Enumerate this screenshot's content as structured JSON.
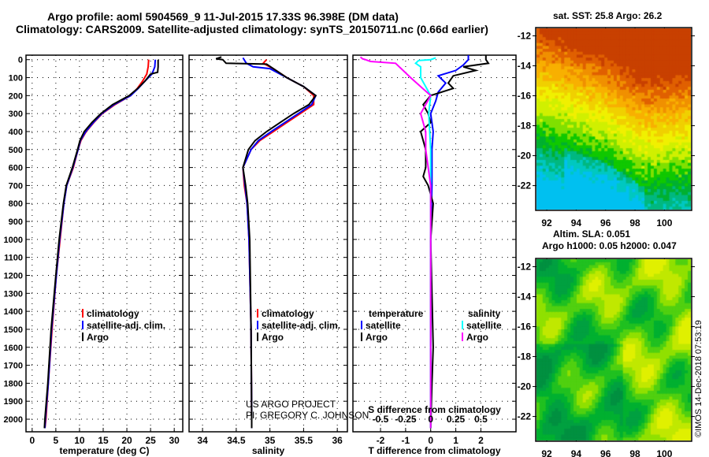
{
  "title_line1": "Argo profile: aoml 5904569_9 11-Jul-2015 17.33S 96.398E (DM data)",
  "title_line2": "Climatology: CARS2009. Satellite-adjusted climatology: synTS_20150711.nc (0.66d earlier)",
  "credit": "©IMOS 14-Dec-2018 07:53:19",
  "project_note": {
    "line1": "US ARGO PROJECT",
    "line2": "PI: GREGORY C. JOHNSON"
  },
  "colors": {
    "climatology": "#ff0000",
    "satellite": "#0000ff",
    "argo": "#000000",
    "sal_satellite": "#00ffff",
    "sal_argo": "#ff00ff"
  },
  "chart_data": [
    {
      "type": "line",
      "id": "temperature",
      "xlabel": "temperature (deg C)",
      "ylabel": "pressure",
      "xticks": [
        0,
        5,
        10,
        15,
        20,
        25,
        30
      ],
      "yticks": [
        0,
        100,
        200,
        300,
        400,
        500,
        600,
        700,
        800,
        900,
        1000,
        1100,
        1200,
        1300,
        1400,
        1500,
        1600,
        1700,
        1800,
        1900,
        2000
      ],
      "xlim": [
        -1.3,
        31.8
      ],
      "ylim": [
        2070,
        -25
      ],
      "legend": [
        "climatology",
        "satellite-adj. clim.",
        "Argo"
      ],
      "series": [
        {
          "name": "climatology",
          "color": "#ff0000",
          "points": [
            [
              0,
              24.6
            ],
            [
              40,
              24.5
            ],
            [
              80,
              24.2
            ],
            [
              120,
              23.3
            ],
            [
              160,
              22.2
            ],
            [
              200,
              20.8
            ],
            [
              250,
              17.5
            ],
            [
              300,
              14.8
            ],
            [
              350,
              13.0
            ],
            [
              400,
              11.4
            ],
            [
              450,
              10.3
            ],
            [
              500,
              9.7
            ],
            [
              600,
              8.7
            ],
            [
              700,
              7.3
            ],
            [
              800,
              6.7
            ],
            [
              1000,
              5.9
            ],
            [
              1200,
              5.1
            ],
            [
              1500,
              4.2
            ],
            [
              1800,
              3.4
            ],
            [
              2000,
              2.9
            ],
            [
              2050,
              2.7
            ]
          ]
        },
        {
          "name": "satellite-adj. clim.",
          "color": "#0000ff",
          "points": [
            [
              0,
              26.0
            ],
            [
              40,
              25.9
            ],
            [
              80,
              25.3
            ],
            [
              120,
              23.8
            ],
            [
              160,
              22.4
            ],
            [
              200,
              20.8
            ],
            [
              250,
              17.3
            ],
            [
              300,
              14.7
            ],
            [
              350,
              12.9
            ],
            [
              400,
              11.3
            ],
            [
              450,
              10.2
            ],
            [
              500,
              9.7
            ],
            [
              600,
              8.6
            ],
            [
              700,
              7.3
            ],
            [
              800,
              6.7
            ],
            [
              1000,
              5.8
            ],
            [
              1200,
              5.1
            ],
            [
              1500,
              4.1
            ],
            [
              1800,
              3.4
            ],
            [
              2000,
              2.8
            ],
            [
              2050,
              2.7
            ]
          ]
        },
        {
          "name": "Argo",
          "color": "#000000",
          "points": [
            [
              0,
              26.6
            ],
            [
              40,
              26.6
            ],
            [
              70,
              26.5
            ],
            [
              80,
              25.0
            ],
            [
              120,
              23.8
            ],
            [
              160,
              22.3
            ],
            [
              200,
              20.5
            ],
            [
              250,
              17.0
            ],
            [
              300,
              14.5
            ],
            [
              350,
              12.6
            ],
            [
              400,
              11.0
            ],
            [
              450,
              10.1
            ],
            [
              500,
              9.6
            ],
            [
              600,
              8.5
            ],
            [
              700,
              7.2
            ],
            [
              800,
              6.6
            ],
            [
              1000,
              5.7
            ],
            [
              1200,
              5.0
            ],
            [
              1500,
              4.0
            ],
            [
              1800,
              3.3
            ],
            [
              2000,
              2.7
            ],
            [
              2050,
              2.6
            ]
          ]
        }
      ]
    },
    {
      "type": "line",
      "id": "salinity",
      "xlabel": "salinity",
      "xticks": [
        34,
        34.5,
        35,
        35.5,
        36
      ],
      "xlim": [
        33.8,
        36.15
      ],
      "ylim": [
        2070,
        -25
      ],
      "legend": [
        "climatology",
        "satellite-adj. clim.",
        "Argo"
      ],
      "series": [
        {
          "name": "climatology",
          "color": "#ff0000",
          "points": [
            [
              0,
              34.95
            ],
            [
              20,
              34.9
            ],
            [
              50,
              35.05
            ],
            [
              100,
              35.25
            ],
            [
              150,
              35.5
            ],
            [
              200,
              35.65
            ],
            [
              250,
              35.65
            ],
            [
              300,
              35.45
            ],
            [
              350,
              35.25
            ],
            [
              400,
              35.05
            ],
            [
              450,
              34.85
            ],
            [
              500,
              34.72
            ],
            [
              600,
              34.6
            ],
            [
              700,
              34.62
            ],
            [
              800,
              34.66
            ],
            [
              1000,
              34.69
            ],
            [
              1500,
              34.72
            ],
            [
              2000,
              34.73
            ],
            [
              2050,
              34.73
            ]
          ]
        },
        {
          "name": "satellite-adj. clim.",
          "color": "#0000ff",
          "points": [
            [
              -10,
              34.6
            ],
            [
              20,
              34.65
            ],
            [
              40,
              34.75
            ],
            [
              50,
              35.0
            ],
            [
              100,
              35.25
            ],
            [
              150,
              35.5
            ],
            [
              200,
              35.68
            ],
            [
              250,
              35.62
            ],
            [
              300,
              35.42
            ],
            [
              350,
              35.22
            ],
            [
              400,
              35.02
            ],
            [
              450,
              34.83
            ],
            [
              500,
              34.72
            ],
            [
              600,
              34.6
            ],
            [
              700,
              34.63
            ],
            [
              800,
              34.66
            ],
            [
              1000,
              34.69
            ],
            [
              1500,
              34.72
            ],
            [
              2000,
              34.73
            ],
            [
              2050,
              34.73
            ]
          ]
        },
        {
          "name": "Argo",
          "color": "#000000",
          "points": [
            [
              -15,
              34.28
            ],
            [
              -5,
              34.2
            ],
            [
              0,
              34.3
            ],
            [
              20,
              34.35
            ],
            [
              25,
              34.95
            ],
            [
              50,
              35.05
            ],
            [
              100,
              35.25
            ],
            [
              150,
              35.5
            ],
            [
              200,
              35.68
            ],
            [
              250,
              35.58
            ],
            [
              300,
              35.35
            ],
            [
              350,
              35.15
            ],
            [
              400,
              34.95
            ],
            [
              450,
              34.78
            ],
            [
              500,
              34.68
            ],
            [
              600,
              34.6
            ],
            [
              700,
              34.64
            ],
            [
              800,
              34.67
            ],
            [
              1000,
              34.7
            ],
            [
              1500,
              34.72
            ],
            [
              2000,
              34.73
            ],
            [
              2050,
              34.73
            ]
          ]
        }
      ]
    },
    {
      "type": "line",
      "id": "difference",
      "xlabel": "T difference from climatology",
      "x2label": "S difference from climatology",
      "xticks": [
        -2,
        -1,
        0,
        1,
        2
      ],
      "x2ticks": [
        -0.5,
        -0.25,
        0,
        0.25,
        0.5
      ],
      "xlim": [
        -3.1,
        3.4
      ],
      "x2lim": [
        -0.775,
        0.85
      ],
      "ylim": [
        2070,
        -25
      ],
      "legend_temperature": {
        "heading": "temperature",
        "items": [
          "satellite",
          "Argo"
        ]
      },
      "legend_salinity": {
        "heading": "salinity",
        "items": [
          "satellite",
          "Argo"
        ]
      },
      "series": [
        {
          "name": "temperature satellite",
          "axis": "T",
          "color": "#0000ff",
          "points": [
            [
              -25,
              1.5
            ],
            [
              0,
              1.5
            ],
            [
              30,
              1.3
            ],
            [
              60,
              1.0
            ],
            [
              90,
              0.3
            ],
            [
              130,
              0.6
            ],
            [
              180,
              0.3
            ],
            [
              230,
              0.2
            ],
            [
              300,
              0.0
            ],
            [
              400,
              0.1
            ],
            [
              500,
              0.05
            ],
            [
              700,
              0.05
            ],
            [
              1000,
              0.0
            ],
            [
              1500,
              0.0
            ],
            [
              2050,
              0.0
            ]
          ]
        },
        {
          "name": "temperature Argo",
          "axis": "T",
          "color": "#000000",
          "points": [
            [
              -25,
              2.2
            ],
            [
              0,
              2.2
            ],
            [
              20,
              2.3
            ],
            [
              40,
              1.3
            ],
            [
              60,
              1.8
            ],
            [
              90,
              0.9
            ],
            [
              130,
              0.7
            ],
            [
              160,
              0.9
            ],
            [
              200,
              0.0
            ],
            [
              250,
              -0.3
            ],
            [
              300,
              -0.1
            ],
            [
              350,
              0.0
            ],
            [
              400,
              -0.4
            ],
            [
              500,
              -0.2
            ],
            [
              600,
              -0.2
            ],
            [
              650,
              -0.3
            ],
            [
              700,
              -0.1
            ],
            [
              800,
              0.1
            ],
            [
              1000,
              0.0
            ],
            [
              1300,
              0.05
            ],
            [
              1600,
              0.1
            ],
            [
              1800,
              0.05
            ],
            [
              2050,
              0.0
            ]
          ]
        },
        {
          "name": "salinity satellite",
          "axis": "S",
          "color": "#00ffff",
          "points": [
            [
              -10,
              0.05
            ],
            [
              0,
              0.0
            ],
            [
              5,
              -0.12
            ],
            [
              20,
              -0.15
            ],
            [
              40,
              -0.1
            ],
            [
              100,
              -0.1
            ],
            [
              200,
              0.0
            ],
            [
              300,
              -0.02
            ],
            [
              500,
              0.0
            ],
            [
              800,
              0.0
            ],
            [
              1500,
              0.0
            ],
            [
              2050,
              0.0
            ]
          ]
        },
        {
          "name": "salinity Argo",
          "axis": "S",
          "color": "#ff00ff",
          "points": [
            [
              -15,
              -0.7
            ],
            [
              -5,
              -0.68
            ],
            [
              0,
              -0.65
            ],
            [
              10,
              -0.6
            ],
            [
              20,
              -0.35
            ],
            [
              100,
              -0.2
            ],
            [
              200,
              0.0
            ],
            [
              300,
              -0.1
            ],
            [
              400,
              -0.05
            ],
            [
              500,
              -0.05
            ],
            [
              700,
              0.0
            ],
            [
              1000,
              0.0
            ],
            [
              2050,
              0.0
            ]
          ]
        }
      ]
    }
  ],
  "maps": [
    {
      "title": "sat. SST: 25.8 Argo: 26.2",
      "lon_ticks": [
        "92",
        "94",
        "96",
        "98",
        "100"
      ],
      "lat_ticks": [
        "-12",
        "-14",
        "-16",
        "-18",
        "-20",
        "-22"
      ],
      "float_lon": 96.4,
      "float_lat": -17.33
    },
    {
      "title_line1": "Altim. SLA: 0.051",
      "title_line2": "Argo h1000: 0.05 h2000: 0.047",
      "lon_ticks": [
        "92",
        "94",
        "96",
        "98",
        "100"
      ],
      "lat_ticks": [
        "-12",
        "-14",
        "-16",
        "-18",
        "-20",
        "-22"
      ],
      "float_lon": 96.4,
      "float_lat": -17.33
    }
  ]
}
